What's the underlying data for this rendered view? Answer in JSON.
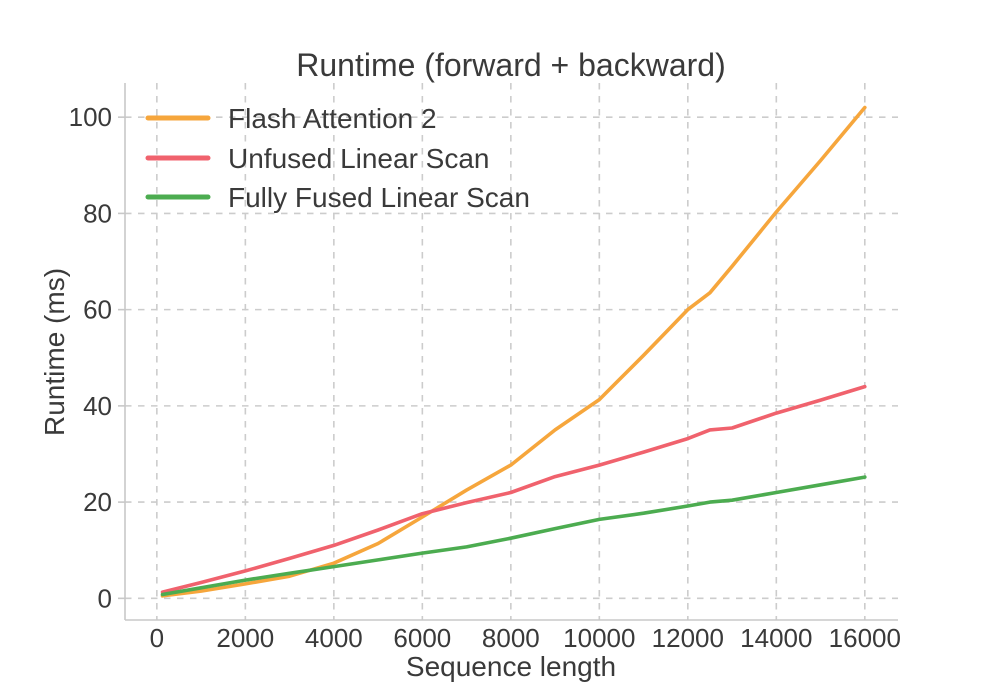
{
  "figure": {
    "background": "#ffffff",
    "text_color": "#3a3a3a",
    "grid_color": "#cccccc",
    "spine_color": "#c8c8c8"
  },
  "chart_data": {
    "type": "line",
    "title": "Runtime (forward + backward)",
    "xlabel": "Sequence length",
    "ylabel": "Runtime (ms)",
    "xlim": [
      -720,
      16750
    ],
    "ylim": [
      -4.5,
      107.1
    ],
    "grid": {
      "visible": true,
      "style": "dashed"
    },
    "legend": {
      "position": "upper-left",
      "frame": false
    },
    "xticks": {
      "values": [
        0,
        2000,
        4000,
        6000,
        8000,
        10000,
        12000,
        14000,
        16000
      ],
      "labels": [
        "0",
        "2000",
        "4000",
        "6000",
        "8000",
        "10000",
        "12000",
        "14000",
        "16000"
      ]
    },
    "yticks": {
      "values": [
        0,
        20,
        40,
        60,
        80,
        100
      ],
      "labels": [
        "0",
        "20",
        "40",
        "60",
        "80",
        "100"
      ]
    },
    "x": [
      128,
      1000,
      2000,
      3000,
      4000,
      5000,
      6000,
      7000,
      8000,
      9000,
      10000,
      11000,
      12000,
      12500,
      13000,
      14000,
      15000,
      16000
    ],
    "series": [
      {
        "name": "Flash Attention 2",
        "color": "#F6A63C",
        "values": [
          0.5,
          1.5,
          3.0,
          4.6,
          7.3,
          11.4,
          16.9,
          22.5,
          27.7,
          35.0,
          41.3,
          50.5,
          60.0,
          63.5,
          69.0,
          80.3,
          91.0,
          102.0
        ]
      },
      {
        "name": "Unfused Linear Scan",
        "color": "#F0626D",
        "values": [
          1.3,
          3.3,
          5.7,
          8.3,
          11.0,
          14.2,
          17.6,
          19.9,
          22.0,
          25.3,
          27.7,
          30.4,
          33.2,
          35.0,
          35.4,
          38.5,
          41.2,
          44.0
        ]
      },
      {
        "name": "Fully Fused Linear Scan",
        "color": "#4CAC50",
        "values": [
          0.8,
          2.2,
          3.8,
          5.2,
          6.6,
          8.0,
          9.4,
          10.7,
          12.5,
          14.5,
          16.4,
          17.7,
          19.2,
          20.0,
          20.4,
          22.0,
          23.6,
          25.2
        ]
      }
    ]
  }
}
